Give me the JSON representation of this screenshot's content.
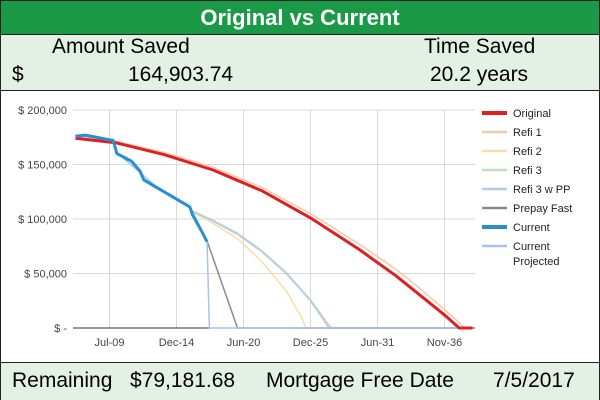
{
  "title": "Original vs Current",
  "summary": {
    "amount_label": "Amount Saved",
    "currency": "$",
    "amount_value": "164,903.74",
    "time_label": "Time Saved",
    "time_value": "20.2 years"
  },
  "footer": {
    "remaining_label": "Remaining",
    "remaining_value": "$79,181.68",
    "free_label": "Mortgage Free Date",
    "free_value": "7/5/2017"
  },
  "chart_data": {
    "type": "line",
    "x_tick_labels": [
      "Jul-09",
      "Dec-14",
      "Jun-20",
      "Dec-25",
      "Jun-31",
      "Nov-36"
    ],
    "x_range": [
      2006.5,
      2039.5
    ],
    "x_ticks": [
      2009.5,
      2015.0,
      2020.5,
      2026.0,
      2031.5,
      2037.0
    ],
    "y_tick_labels": [
      "$ -",
      "$ 50,000",
      "$ 100,000",
      "$ 150,000",
      "$ 200,000"
    ],
    "y_ticks": [
      0,
      50000,
      100000,
      150000,
      200000
    ],
    "ylim": [
      0,
      200000
    ],
    "grid": true,
    "legend_position": "right",
    "series": [
      {
        "name": "Original",
        "color": "#e02020",
        "width": 3,
        "points": [
          [
            2006.7,
            174000
          ],
          [
            2010,
            170000
          ],
          [
            2014,
            159000
          ],
          [
            2018,
            145000
          ],
          [
            2022,
            126000
          ],
          [
            2026,
            101000
          ],
          [
            2030,
            72000
          ],
          [
            2033,
            48000
          ],
          [
            2035,
            30000
          ],
          [
            2037,
            12000
          ],
          [
            2038.2,
            0
          ],
          [
            2039.3,
            0
          ]
        ]
      },
      {
        "name": "Refi 1",
        "color": "#f5c9a8",
        "width": 1.5,
        "points": [
          [
            2006.7,
            175000
          ],
          [
            2010,
            171500
          ],
          [
            2014,
            161000
          ],
          [
            2018,
            147500
          ],
          [
            2022,
            129000
          ],
          [
            2026,
            105000
          ],
          [
            2030,
            77000
          ],
          [
            2033,
            54000
          ],
          [
            2035,
            36000
          ],
          [
            2037,
            17000
          ],
          [
            2038.7,
            0
          ],
          [
            2039.3,
            0
          ]
        ]
      },
      {
        "name": "Refi 2",
        "color": "#f6dfa6",
        "width": 1.5,
        "points": [
          [
            2016.2,
            107000
          ],
          [
            2018,
            96000
          ],
          [
            2020,
            82000
          ],
          [
            2022,
            61000
          ],
          [
            2024,
            34000
          ],
          [
            2025.3,
            9000
          ],
          [
            2025.6,
            0
          ],
          [
            2039.3,
            0
          ]
        ]
      },
      {
        "name": "Refi 3",
        "color": "#bfe0bd",
        "width": 1.5,
        "points": [
          [
            2016.2,
            108000
          ],
          [
            2018,
            99000
          ],
          [
            2020,
            87000
          ],
          [
            2022,
            71000
          ],
          [
            2024,
            51000
          ],
          [
            2026,
            26000
          ],
          [
            2027.5,
            3000
          ],
          [
            2027.8,
            0
          ],
          [
            2039.3,
            0
          ]
        ]
      },
      {
        "name": "Refi 3 w PP",
        "color": "#b7c8ea",
        "width": 1.5,
        "points": [
          [
            2016.2,
            107500
          ],
          [
            2018,
            98000
          ],
          [
            2020,
            86000
          ],
          [
            2022,
            70000
          ],
          [
            2024,
            50000
          ],
          [
            2026,
            25000
          ],
          [
            2027.4,
            2000
          ],
          [
            2027.6,
            0
          ],
          [
            2039.3,
            0
          ]
        ]
      },
      {
        "name": "Prepay Fast",
        "color": "#8a8a8a",
        "width": 1.5,
        "points": [
          [
            2017.5,
            80000
          ],
          [
            2020,
            0
          ],
          [
            2039.3,
            0
          ]
        ]
      },
      {
        "name": "Current",
        "color": "#2a8fd0",
        "width": 3,
        "points": [
          [
            2006.7,
            176000
          ],
          [
            2007.5,
            177000
          ],
          [
            2009.8,
            172000
          ],
          [
            2010.1,
            160000
          ],
          [
            2011.3,
            153000
          ],
          [
            2012,
            144000
          ],
          [
            2012.3,
            136000
          ],
          [
            2013.2,
            130000
          ],
          [
            2016.1,
            111000
          ],
          [
            2016.3,
            104000
          ],
          [
            2017.1,
            88000
          ],
          [
            2017.5,
            79182
          ]
        ]
      },
      {
        "name": "Current Projected",
        "color": "#a8c2ee",
        "width": 1.5,
        "label_lines": [
          "Current",
          "Projected"
        ],
        "points": [
          [
            2006.7,
            177000
          ],
          [
            2009.8,
            172000
          ],
          [
            2010.1,
            161000
          ],
          [
            2013.2,
            131000
          ],
          [
            2016.1,
            112000
          ],
          [
            2017.5,
            80000
          ],
          [
            2017.7,
            0
          ],
          [
            2039.3,
            0
          ]
        ]
      }
    ]
  }
}
